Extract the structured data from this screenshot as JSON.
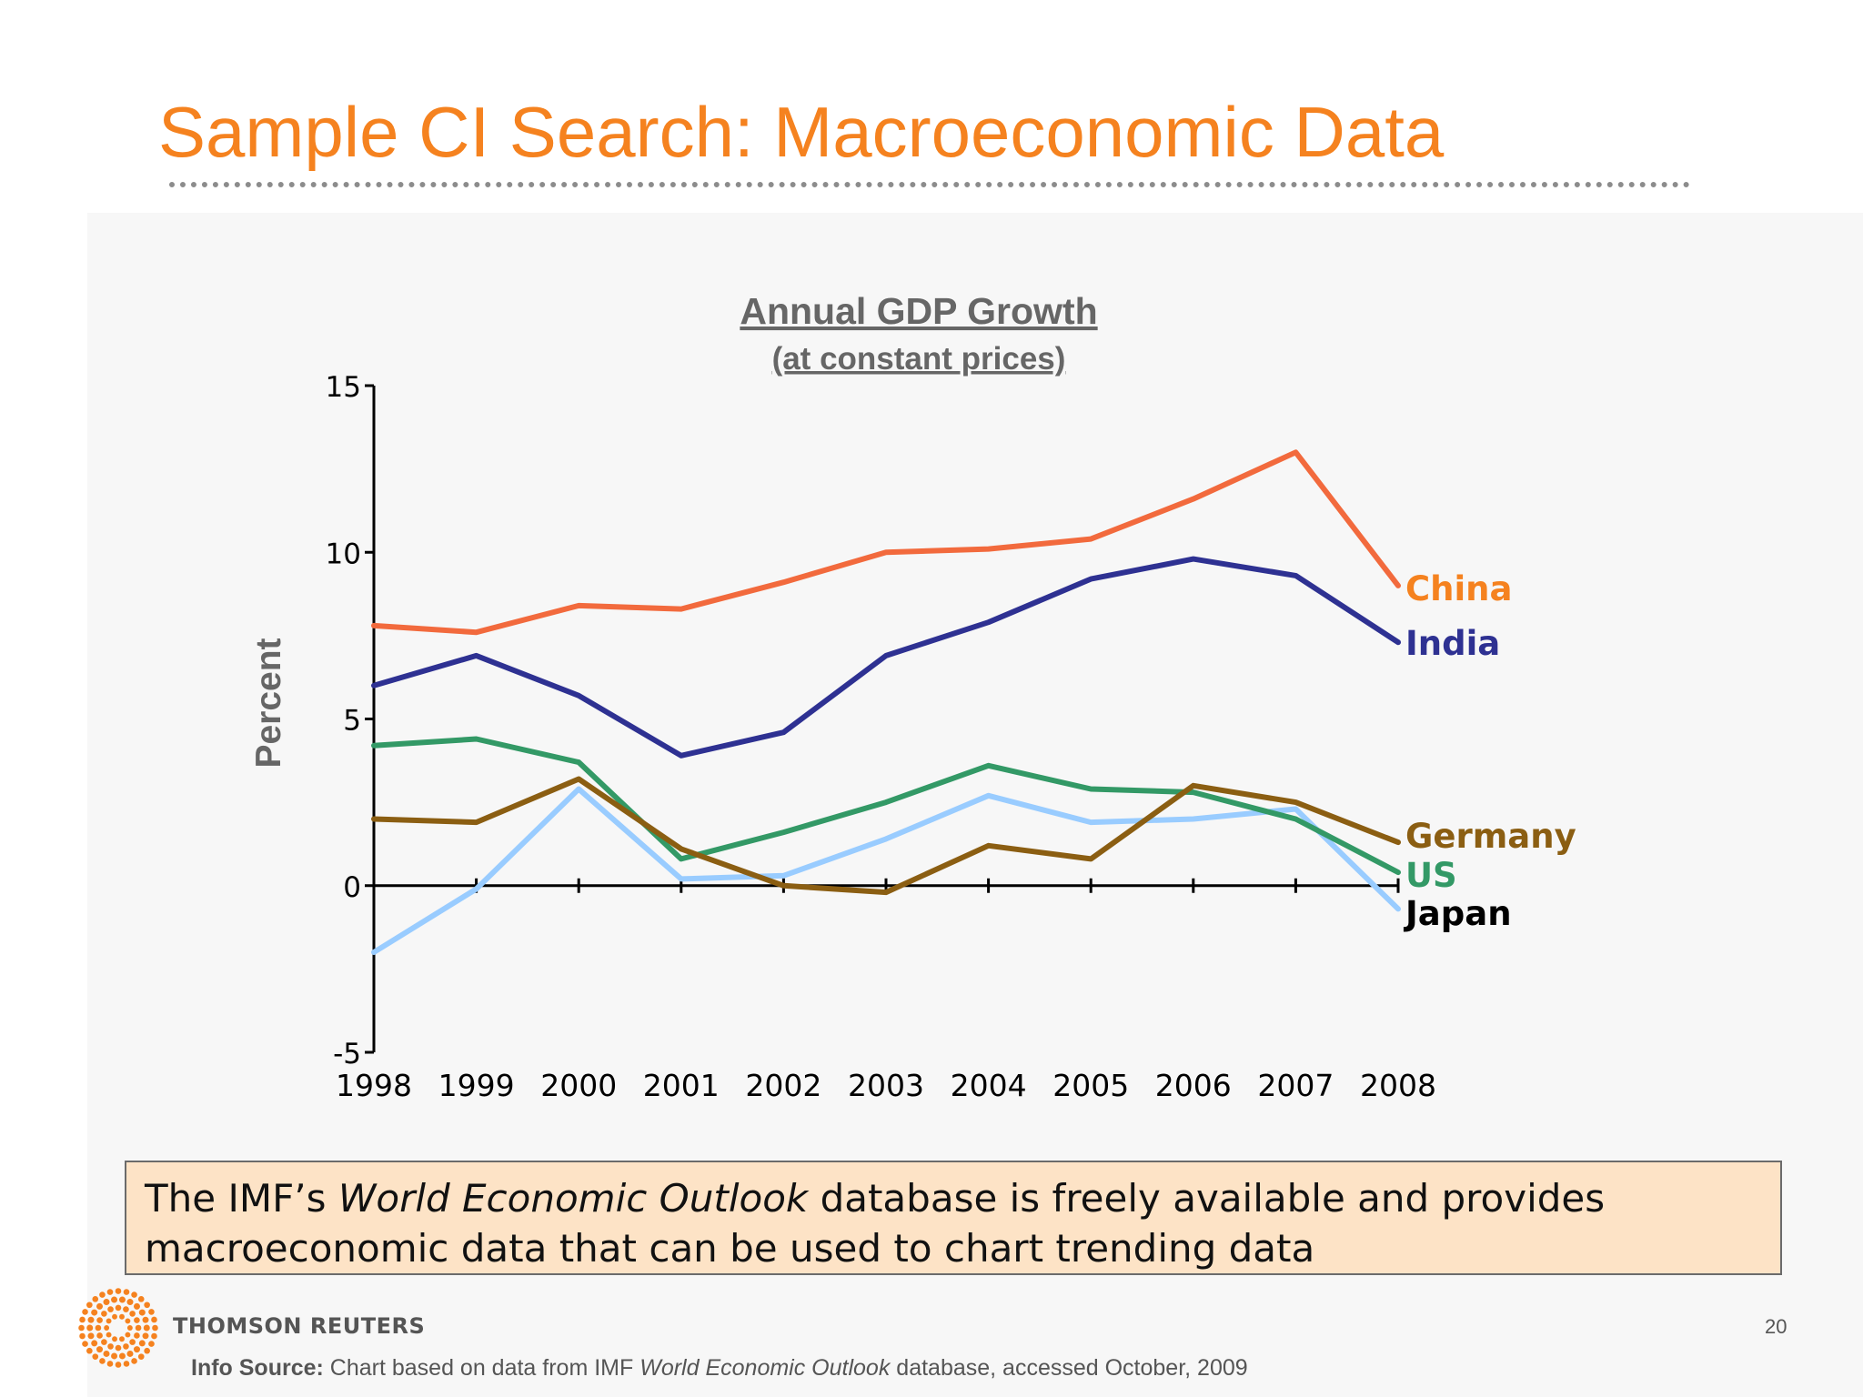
{
  "slide": {
    "title": "Sample CI Search: Macroeconomic Data",
    "page_number": "20"
  },
  "callout": {
    "line1_prefix": "The IMF’s ",
    "line1_italic": "World Economic Outlook",
    "line1_suffix": " database is freely available and provides",
    "line2": "macroeconomic data that can be used to chart trending data"
  },
  "footer": {
    "brand": "THOMSON REUTERS",
    "source_label": "Info Source:",
    "source_text_1": " Chart based on data from IMF ",
    "source_italic": "World Economic Outlook",
    "source_text_2": " database, accessed October, 2009"
  },
  "chart_data": {
    "type": "line",
    "title": "Annual GDP Growth",
    "subtitle": "(at constant prices)",
    "ylabel": "Percent",
    "xlabel": "",
    "ylim": [
      -5,
      15
    ],
    "yticks": [
      -5,
      0,
      5,
      10,
      15
    ],
    "x": [
      "1998",
      "1999",
      "2000",
      "2001",
      "2002",
      "2003",
      "2004",
      "2005",
      "2006",
      "2007",
      "2008"
    ],
    "grid": false,
    "legend": "inline labels at right end of lines",
    "series": [
      {
        "name": "China",
        "color": "#f26a3d",
        "label_color": "#f5821f",
        "values": [
          7.8,
          7.6,
          8.4,
          8.3,
          9.1,
          10.0,
          10.1,
          10.4,
          11.6,
          13.0,
          9.0
        ]
      },
      {
        "name": "India",
        "color": "#2e3192",
        "label_color": "#2e3192",
        "values": [
          6.0,
          6.9,
          5.7,
          3.9,
          4.6,
          6.9,
          7.9,
          9.2,
          9.8,
          9.3,
          7.3
        ]
      },
      {
        "name": "Germany",
        "color": "#8b5e12",
        "label_color": "#8b5e12",
        "values": [
          2.0,
          1.9,
          3.2,
          1.1,
          0.0,
          -0.2,
          1.2,
          0.8,
          3.0,
          2.5,
          1.3
        ]
      },
      {
        "name": "US",
        "color": "#339966",
        "label_color": "#339966",
        "values": [
          4.2,
          4.4,
          3.7,
          0.8,
          1.6,
          2.5,
          3.6,
          2.9,
          2.8,
          2.0,
          0.4
        ]
      },
      {
        "name": "Japan",
        "color": "#99ccff",
        "label_color": "#000000",
        "values": [
          -2.0,
          -0.1,
          2.9,
          0.2,
          0.3,
          1.4,
          2.7,
          1.9,
          2.0,
          2.3,
          -0.7
        ]
      }
    ]
  }
}
